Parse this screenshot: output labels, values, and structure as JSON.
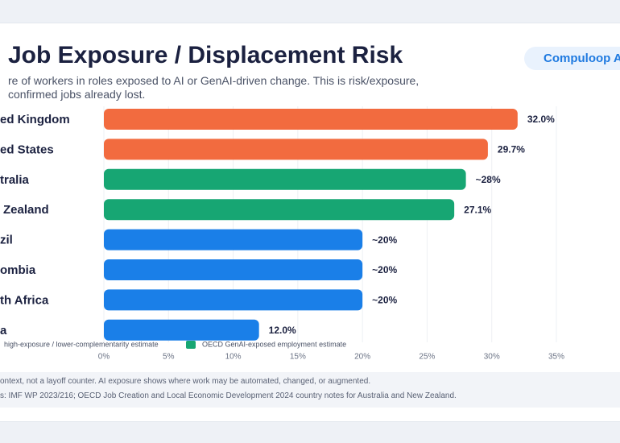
{
  "header": {
    "title": "Job Exposure / Displacement Risk",
    "badge": "Compuloop A",
    "subtitle_lines": [
      "re of workers in roles exposed to AI or GenAI-driven change. This is risk/exposure,",
      "confirmed jobs already lost."
    ]
  },
  "chart_data": {
    "type": "bar",
    "orientation": "horizontal",
    "categories": [
      "ed Kingdom",
      "ed States",
      "tralia",
      "Zealand",
      "zil",
      "ombia",
      "th Africa",
      "a"
    ],
    "values": [
      32.0,
      29.7,
      28,
      27.1,
      20,
      20,
      20,
      12.0
    ],
    "value_labels": [
      "32.0%",
      "29.7%",
      "~28%",
      "27.1%",
      "~20%",
      "~20%",
      "~20%",
      "12.0%"
    ],
    "colors": [
      "#f26b3f",
      "#f26b3f",
      "#17a673",
      "#17a673",
      "#1a7fe8",
      "#1a7fe8",
      "#1a7fe8",
      "#1a7fe8"
    ],
    "xlim": [
      0,
      35
    ],
    "xticks": [
      {
        "value": 0,
        "label": "0%"
      },
      {
        "value": 5,
        "label": "5%"
      },
      {
        "value": 10,
        "label": "10%"
      },
      {
        "value": 15,
        "label": "15%"
      },
      {
        "value": 20,
        "label": "20%"
      },
      {
        "value": 25,
        "label": "25%"
      },
      {
        "value": 30,
        "label": "30%"
      },
      {
        "value": 35,
        "label": "35%"
      }
    ],
    "grid": true,
    "legend": [
      {
        "label": "high-exposure / lower-complementarity estimate"
      },
      {
        "label": "OECD GenAI-exposed employment estimate",
        "color": "#17a673"
      }
    ]
  },
  "footer": {
    "lines": [
      "ontext, not a layoff counter. AI exposure shows where work may be automated, changed, or augmented.",
      "s: IMF WP 2023/216; OECD Job Creation and Local Economic Development 2024 country notes for Australia and New Zealand."
    ]
  }
}
